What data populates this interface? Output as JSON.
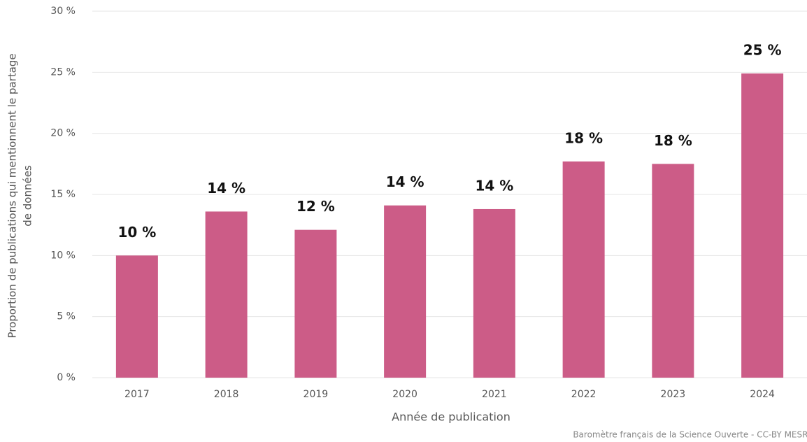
{
  "chart_data": {
    "type": "bar",
    "y_label": [
      "Proportion de publications qui mentionnent le partage",
      "de données"
    ],
    "x_label": "Année de publication",
    "source": "Baromètre français de la Science Ouverte - CC-BY MESRI",
    "categories": [
      "2017",
      "2018",
      "2019",
      "2020",
      "2021",
      "2022",
      "2023",
      "2024"
    ],
    "values": [
      10.0,
      13.6,
      12.1,
      14.1,
      13.8,
      17.7,
      17.5,
      24.9
    ],
    "value_labels": [
      "10 %",
      "14 %",
      "12 %",
      "14 %",
      "14 %",
      "18 %",
      "18 %",
      "25 %"
    ],
    "color": "#cc5c87",
    "ylim": [
      0,
      30
    ],
    "yticks": [
      {
        "value": 0,
        "label": "0 %"
      },
      {
        "value": 5,
        "label": "5 %"
      },
      {
        "value": 10,
        "label": "10 %"
      },
      {
        "value": 15,
        "label": "15 %"
      },
      {
        "value": 20,
        "label": "20 %"
      },
      {
        "value": 25,
        "label": "25 %"
      },
      {
        "value": 30,
        "label": "30 %"
      }
    ],
    "grid": true
  }
}
